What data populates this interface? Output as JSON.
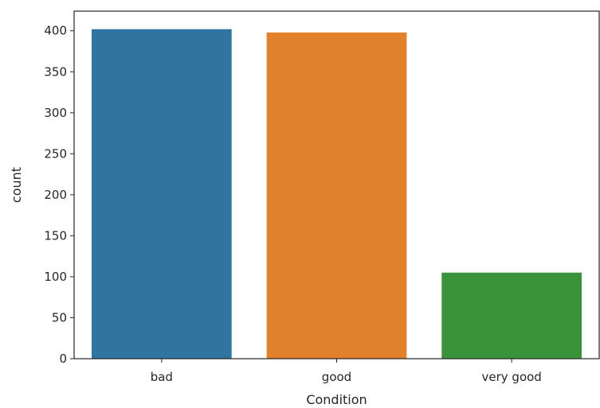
{
  "chart_data": {
    "type": "bar",
    "title": "",
    "xlabel": "Condition",
    "ylabel": "count",
    "categories": [
      "bad",
      "good",
      "very good"
    ],
    "values": [
      402,
      398,
      105
    ],
    "colors": [
      "#3274a1",
      "#e1812c",
      "#3a923a"
    ],
    "ylim": [
      0,
      424
    ],
    "yticks": [
      0,
      50,
      100,
      150,
      200,
      250,
      300,
      350,
      400
    ],
    "grid": false,
    "legend": "none"
  }
}
